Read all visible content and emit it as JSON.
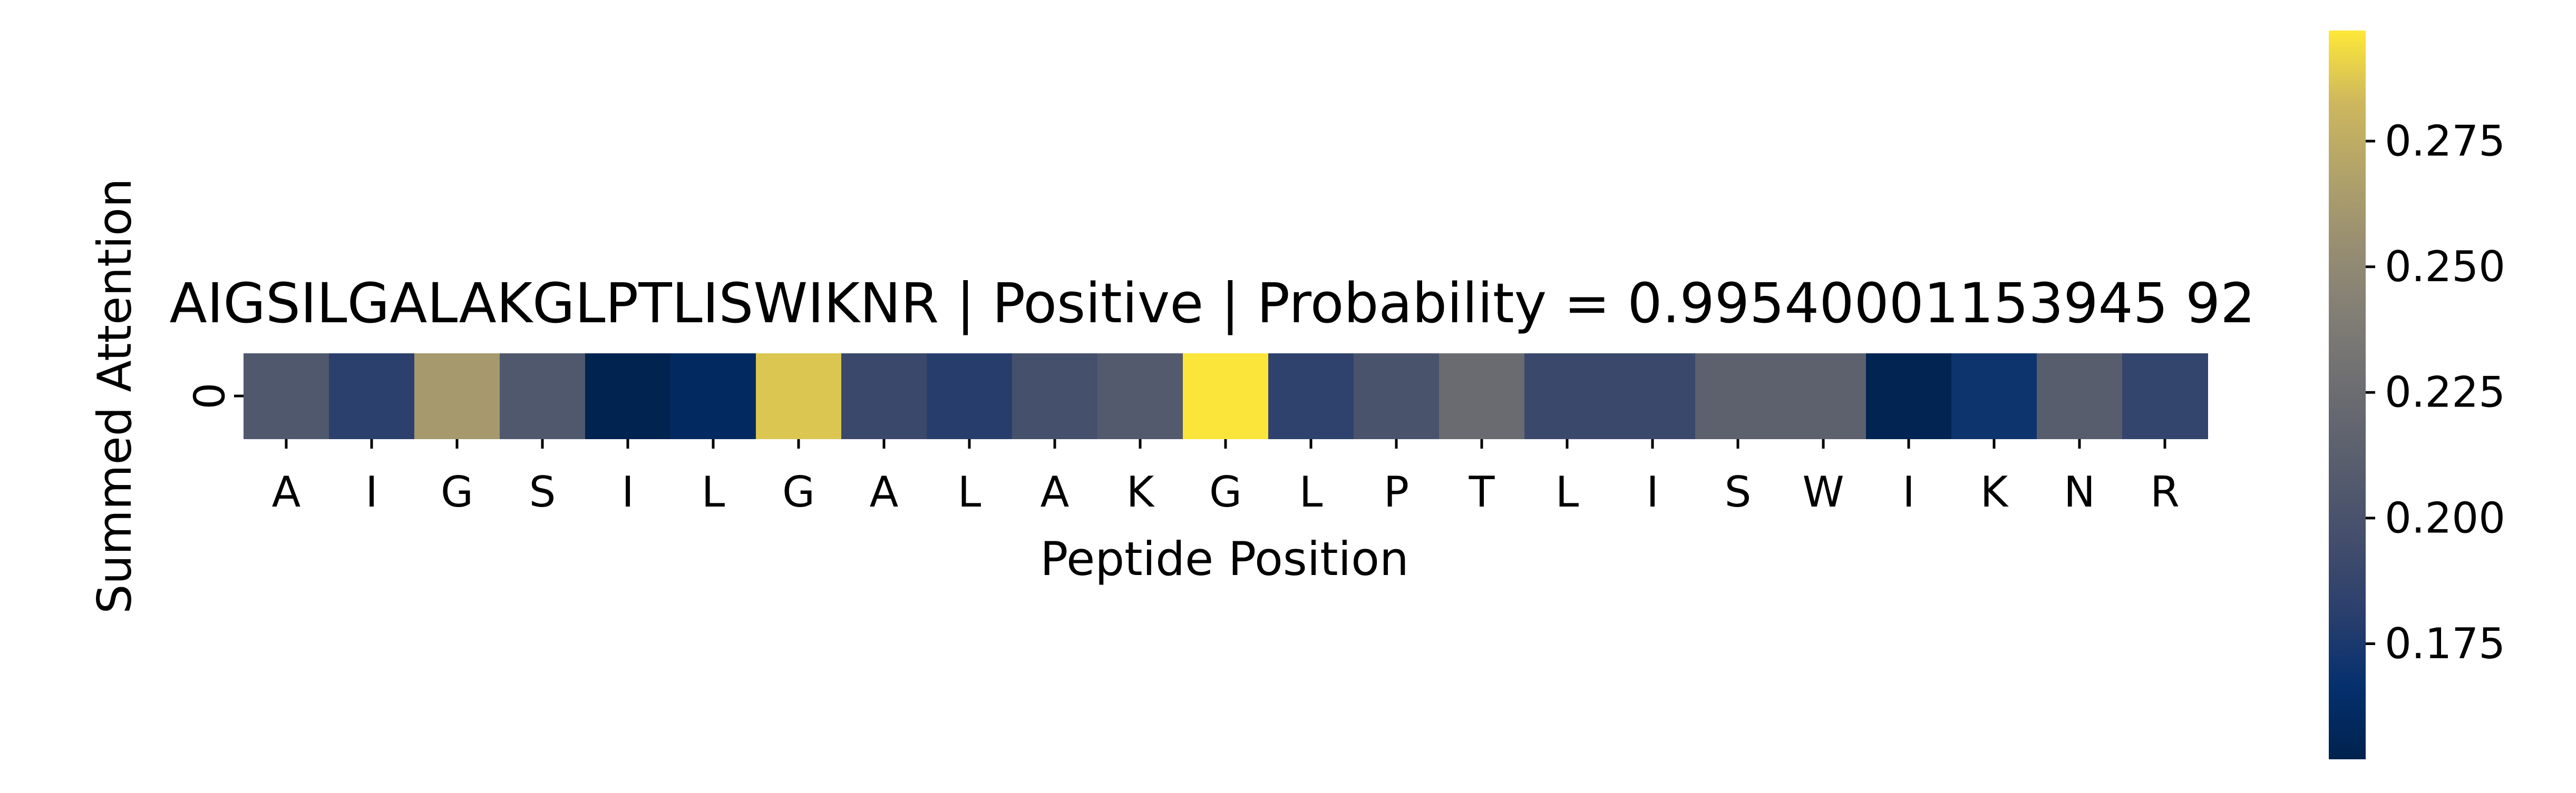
{
  "chart_data": {
    "type": "heatmap",
    "title": "AIGSILGALAKGLPTLISWIKNR | Positive | Probability = 0.99540001153945 92",
    "xlabel": "Peptide Position",
    "ylabel": "Summed Attention",
    "x_categories": [
      "A",
      "I",
      "G",
      "S",
      "I",
      "L",
      "G",
      "A",
      "L",
      "A",
      "K",
      "G",
      "L",
      "P",
      "T",
      "L",
      "I",
      "S",
      "W",
      "I",
      "K",
      "N",
      "R"
    ],
    "y_categories": [
      "0"
    ],
    "values": [
      [
        0.205,
        0.182,
        0.262,
        0.205,
        0.153,
        0.16,
        0.287,
        0.19,
        0.18,
        0.197,
        0.207,
        0.296,
        0.184,
        0.2,
        0.224,
        0.19,
        0.19,
        0.214,
        0.214,
        0.154,
        0.17,
        0.21,
        0.186
      ]
    ],
    "colormap": "cividis",
    "colorbar": {
      "min": 0.152,
      "max": 0.297,
      "ticks": [
        0.175,
        0.2,
        0.225,
        0.25,
        0.275
      ],
      "tick_labels": [
        "0.175",
        "0.200",
        "0.225",
        "0.250",
        "0.275"
      ]
    }
  }
}
